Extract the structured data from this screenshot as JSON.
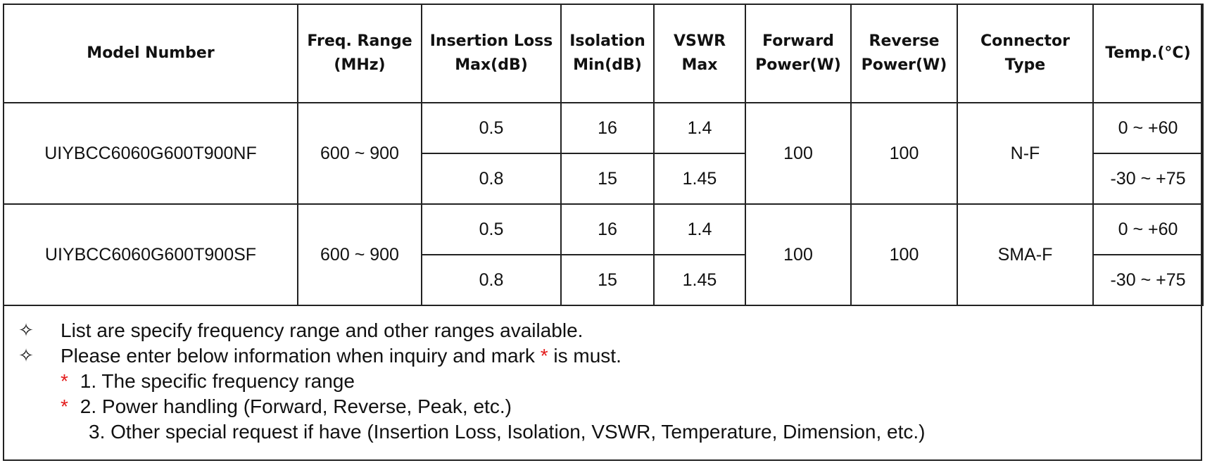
{
  "table": {
    "headers": [
      [
        "Model Number"
      ],
      [
        "Freq. Range",
        "(MHz)"
      ],
      [
        "Insertion Loss",
        "Max(dB)"
      ],
      [
        "Isolation",
        "Min(dB)"
      ],
      [
        "VSWR",
        "Max"
      ],
      [
        "Forward",
        "Power(W)"
      ],
      [
        "Reverse",
        "Power(W)"
      ],
      [
        "Connector",
        "Type"
      ],
      [
        "Temp.(°C)"
      ]
    ],
    "rows": [
      {
        "model": "UIYBCC6060G600T900NF",
        "freq": "600 ~ 900",
        "sub": [
          {
            "il": "0.5",
            "iso": "16",
            "vswr": "1.4",
            "temp": "0 ~ +60"
          },
          {
            "il": "0.8",
            "iso": "15",
            "vswr": "1.45",
            "temp": "-30 ~ +75"
          }
        ],
        "fwd": "100",
        "rev": "100",
        "connector": "N-F"
      },
      {
        "model": "UIYBCC6060G600T900SF",
        "freq": "600 ~ 900",
        "sub": [
          {
            "il": "0.5",
            "iso": "16",
            "vswr": "1.4",
            "temp": "0 ~ +60"
          },
          {
            "il": "0.8",
            "iso": "15",
            "vswr": "1.45",
            "temp": "-30 ~ +75"
          }
        ],
        "fwd": "100",
        "rev": "100",
        "connector": "SMA-F"
      }
    ]
  },
  "notes": {
    "bullet_glyph": "✧",
    "line1": "List are specify frequency range and other ranges available.",
    "line2_pre": "Please enter below information when inquiry and mark ",
    "line2_star": "*",
    "line2_post": " is must.",
    "items": [
      {
        "star": "*",
        "text": " 1. The specific frequency range"
      },
      {
        "star": "*",
        "text": " 2. Power handling (Forward, Reverse, Peak, etc.)"
      },
      {
        "star": "",
        "text": "3. Other special request if have (Insertion Loss, Isolation, VSWR, Temperature, Dimension, etc.)"
      }
    ],
    "star_color": "#e31b1b"
  }
}
